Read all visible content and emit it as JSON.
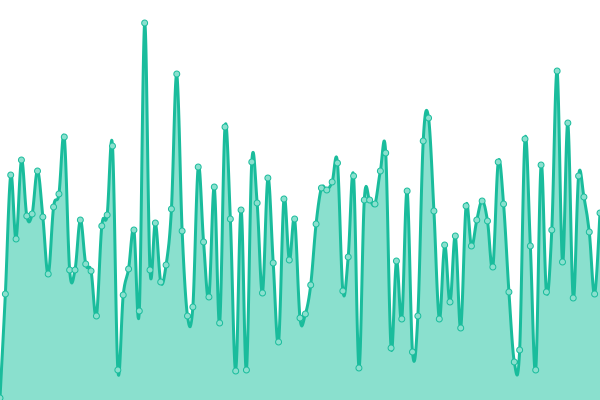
{
  "chart_data": {
    "type": "area",
    "title": "",
    "xlabel": "",
    "ylabel": "",
    "ylim": [
      0,
      400
    ],
    "grid": false,
    "legend": "none",
    "smooth": true,
    "colors": {
      "line": "#1abc9c",
      "fill": "#8ae0ce",
      "marker_fill": "#8ae0ce",
      "marker_stroke": "#1abc9c"
    },
    "values": [
      2,
      106,
      225,
      161,
      240,
      184,
      186,
      229,
      183,
      126,
      193,
      206,
      263,
      130,
      130,
      180,
      136,
      129,
      84,
      174,
      185,
      254,
      30,
      105,
      131,
      170,
      89,
      377,
      130,
      177,
      118,
      135,
      191,
      326,
      169,
      84,
      93,
      233,
      158,
      103,
      213,
      77,
      273,
      181,
      29,
      190,
      30,
      238,
      197,
      107,
      222,
      137,
      58,
      201,
      140,
      181,
      82,
      86,
      115,
      176,
      212,
      210,
      218,
      237,
      109,
      143,
      224,
      32,
      200,
      200,
      196,
      229,
      247,
      52,
      139,
      81,
      209,
      48,
      84,
      259,
      282,
      189,
      81,
      155,
      98,
      164,
      72,
      194,
      154,
      180,
      199,
      179,
      133,
      238,
      196,
      108,
      38,
      50,
      261,
      154,
      30,
      235,
      108,
      170,
      329,
      138,
      277,
      102,
      224,
      203,
      168,
      106,
      187
    ]
  }
}
